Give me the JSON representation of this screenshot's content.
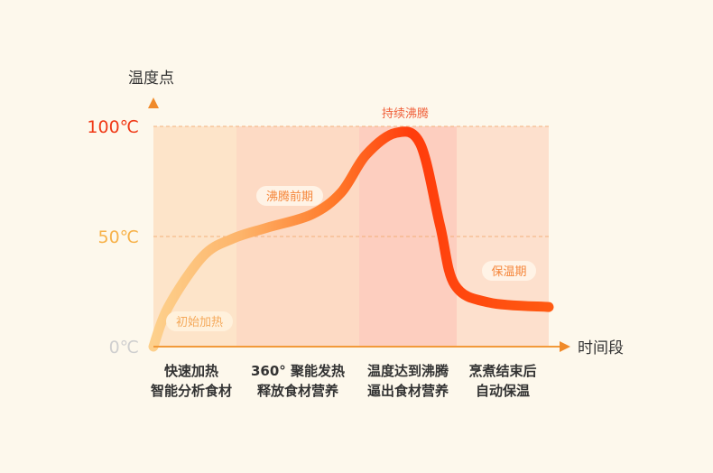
{
  "chart_data": {
    "type": "area",
    "ylabel": "温度点",
    "xlabel": "时间段",
    "y_ticks": [
      {
        "value": 0,
        "label": "0℃",
        "color": "#cfcfcf"
      },
      {
        "value": 50,
        "label": "50℃",
        "color": "#f7b24a"
      },
      {
        "value": 100,
        "label": "100℃",
        "color": "#f03a17"
      }
    ],
    "ylim": [
      0,
      100
    ],
    "xlim": [
      0,
      4
    ],
    "grid": "dashed reference lines at 50 and 100",
    "stages": [
      {
        "name": "初始加热",
        "label_lines": [
          "快速加热",
          "智能分析食材"
        ],
        "color": "#fde1c3"
      },
      {
        "name": "沸腾前期",
        "label_lines": [
          "360° 聚能发热",
          "释放食材营养"
        ],
        "color": "#fdd5bd"
      },
      {
        "name": "持续沸腾",
        "label_lines": [
          "温度达到沸腾",
          "逼出食材营养"
        ],
        "color": "#fdc7b7"
      },
      {
        "name": "保温期",
        "label_lines": [
          "烹煮结束后",
          "自动保温"
        ],
        "color": "#fddcc8"
      }
    ],
    "series": [
      {
        "points": [
          {
            "x": 0.0,
            "y": 0
          },
          {
            "x": 0.15,
            "y": 18
          },
          {
            "x": 0.5,
            "y": 41
          },
          {
            "x": 0.8,
            "y": 49
          },
          {
            "x": 1.15,
            "y": 54
          },
          {
            "x": 1.6,
            "y": 60
          },
          {
            "x": 1.9,
            "y": 70
          },
          {
            "x": 2.15,
            "y": 87
          },
          {
            "x": 2.45,
            "y": 97
          },
          {
            "x": 2.7,
            "y": 92
          },
          {
            "x": 2.9,
            "y": 55
          },
          {
            "x": 3.05,
            "y": 28
          },
          {
            "x": 3.4,
            "y": 20
          },
          {
            "x": 4.0,
            "y": 18
          }
        ]
      }
    ],
    "colors": {
      "start": "#fdc87a",
      "mid": "#ff6a1a",
      "peak": "#ff3d0c",
      "end": "#ff5a14",
      "axis": "#f29a3a"
    }
  }
}
